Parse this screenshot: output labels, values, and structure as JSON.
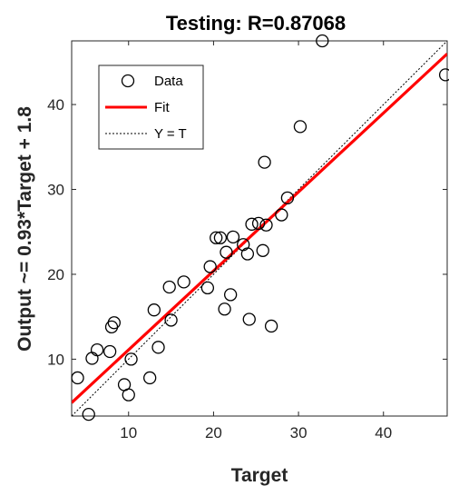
{
  "chart_data": {
    "type": "scatter",
    "title": "Testing: R=0.87068",
    "xlabel": "Target",
    "ylabel": "Output ~= 0.93*Target + 1.8",
    "xlim": [
      3.3,
      47.5
    ],
    "ylim": [
      3.3,
      47.5
    ],
    "xticks": [
      10,
      20,
      30,
      40
    ],
    "yticks": [
      10,
      20,
      30,
      40
    ],
    "grid": false,
    "legend_position": "top-left",
    "legend": [
      "Data",
      "Fit",
      "Y = T"
    ],
    "fit": {
      "slope": 0.93,
      "intercept": 1.8
    },
    "colors": {
      "data": "#000000",
      "fit": "#ff0000",
      "identity": "#000000"
    },
    "points": [
      [
        4.0,
        7.8
      ],
      [
        5.3,
        3.5
      ],
      [
        5.7,
        10.1
      ],
      [
        6.3,
        11.1
      ],
      [
        7.8,
        10.9
      ],
      [
        8.0,
        13.8
      ],
      [
        8.3,
        14.3
      ],
      [
        9.5,
        7.0
      ],
      [
        10.0,
        5.8
      ],
      [
        10.3,
        10.0
      ],
      [
        12.5,
        7.8
      ],
      [
        13.0,
        15.8
      ],
      [
        13.5,
        11.4
      ],
      [
        14.8,
        18.5
      ],
      [
        15.0,
        14.6
      ],
      [
        16.5,
        19.1
      ],
      [
        19.3,
        18.4
      ],
      [
        19.6,
        20.9
      ],
      [
        20.3,
        24.3
      ],
      [
        20.8,
        24.3
      ],
      [
        21.3,
        15.9
      ],
      [
        21.5,
        22.6
      ],
      [
        22.0,
        17.6
      ],
      [
        22.3,
        24.4
      ],
      [
        23.5,
        23.5
      ],
      [
        24.0,
        22.4
      ],
      [
        24.2,
        14.7
      ],
      [
        24.5,
        25.9
      ],
      [
        25.3,
        26.0
      ],
      [
        25.8,
        22.8
      ],
      [
        26.0,
        33.2
      ],
      [
        26.2,
        25.8
      ],
      [
        26.8,
        13.9
      ],
      [
        28.0,
        27.0
      ],
      [
        28.7,
        29.0
      ],
      [
        30.2,
        37.4
      ],
      [
        32.8,
        47.5
      ],
      [
        47.3,
        43.5
      ]
    ]
  }
}
